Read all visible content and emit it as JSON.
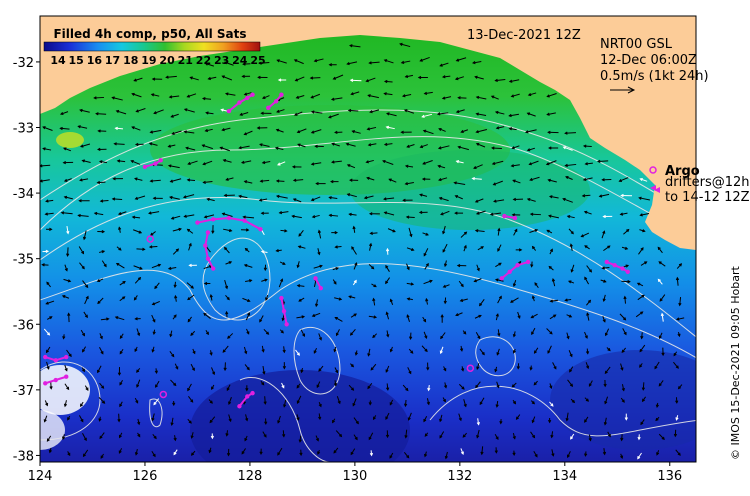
{
  "title": "Filled 4h comp, p50, All Sats",
  "colorbar_ticks": [
    "14",
    "15",
    "16",
    "17",
    "18",
    "19",
    "20",
    "21",
    "22",
    "23",
    "24",
    "25"
  ],
  "date_label": "13-Dec-2021 12Z",
  "current_label": {
    "line1": "NRT00 GSL",
    "line2": "12-Dec 06:00Z",
    "line3": "0.5m/s (1kt 24h)"
  },
  "legend": {
    "argo": "Argo",
    "drifters_line1": "drifters@12h",
    "drifters_line2": "to 14-12 12Z"
  },
  "credit": "© IMOS 15-Dec-2021 09:05 Hobart",
  "x_ticks": [
    "124",
    "126",
    "128",
    "130",
    "132",
    "134",
    "136"
  ],
  "y_ticks": [
    "-32",
    "-33",
    "-34",
    "-35",
    "-36",
    "-37",
    "-38"
  ],
  "colors": {
    "land": "#fccc98",
    "argo": "#e020e0",
    "contour": "#e8e8e8",
    "arrow": "#000000"
  },
  "map_data": {
    "lon_range": [
      124,
      136.5
    ],
    "lat_range": [
      -38.1,
      -31.3
    ],
    "argo_floats": [
      {
        "lon": 126.1,
        "lat": -34.7
      },
      {
        "lon": 126.35,
        "lat": -37.07
      },
      {
        "lon": 132.2,
        "lat": -36.67
      }
    ],
    "drifter_tracks": [
      [
        [
          127.6,
          -32.75
        ],
        [
          127.8,
          -32.62
        ],
        [
          127.95,
          -32.55
        ],
        [
          128.05,
          -32.5
        ]
      ],
      [
        [
          128.35,
          -32.7
        ],
        [
          128.5,
          -32.6
        ],
        [
          128.6,
          -32.5
        ]
      ],
      [
        [
          126.0,
          -33.6
        ],
        [
          126.2,
          -33.55
        ],
        [
          126.3,
          -33.5
        ]
      ],
      [
        [
          127.0,
          -34.45
        ],
        [
          127.3,
          -34.4
        ],
        [
          127.6,
          -34.38
        ],
        [
          127.9,
          -34.42
        ],
        [
          128.2,
          -34.55
        ]
      ],
      [
        [
          127.2,
          -34.6
        ],
        [
          127.15,
          -34.8
        ],
        [
          127.2,
          -35.0
        ],
        [
          127.3,
          -35.15
        ]
      ],
      [
        [
          128.6,
          -35.6
        ],
        [
          128.65,
          -35.8
        ],
        [
          128.7,
          -36.0
        ]
      ],
      [
        [
          129.25,
          -35.3
        ],
        [
          129.35,
          -35.45
        ]
      ],
      [
        [
          132.8,
          -35.3
        ],
        [
          132.95,
          -35.2
        ],
        [
          133.1,
          -35.1
        ],
        [
          133.3,
          -35.05
        ]
      ],
      [
        [
          132.85,
          -34.35
        ],
        [
          133.05,
          -34.38
        ]
      ],
      [
        [
          134.8,
          -35.05
        ],
        [
          134.95,
          -35.1
        ],
        [
          135.1,
          -35.15
        ],
        [
          135.2,
          -35.2
        ]
      ],
      [
        [
          124.1,
          -36.5
        ],
        [
          124.3,
          -36.55
        ],
        [
          124.5,
          -36.5
        ]
      ],
      [
        [
          124.1,
          -36.9
        ],
        [
          124.3,
          -36.85
        ],
        [
          124.5,
          -36.8
        ]
      ],
      [
        [
          127.8,
          -37.25
        ],
        [
          127.95,
          -37.1
        ],
        [
          128.05,
          -37.05
        ]
      ]
    ]
  }
}
